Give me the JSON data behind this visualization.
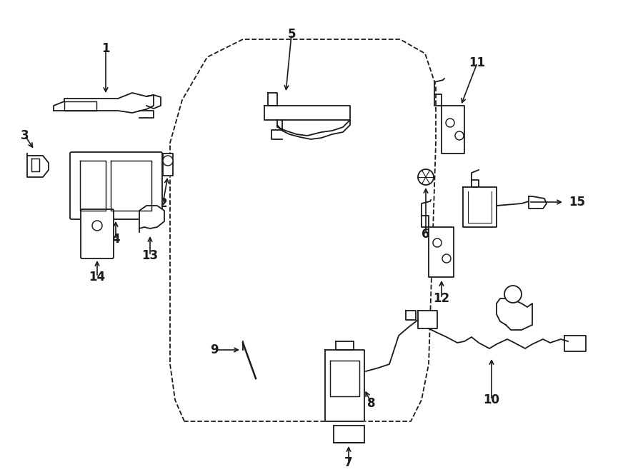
{
  "background_color": "#ffffff",
  "line_color": "#1a1a1a",
  "figure_width": 9.0,
  "figure_height": 6.61,
  "dpi": 100
}
